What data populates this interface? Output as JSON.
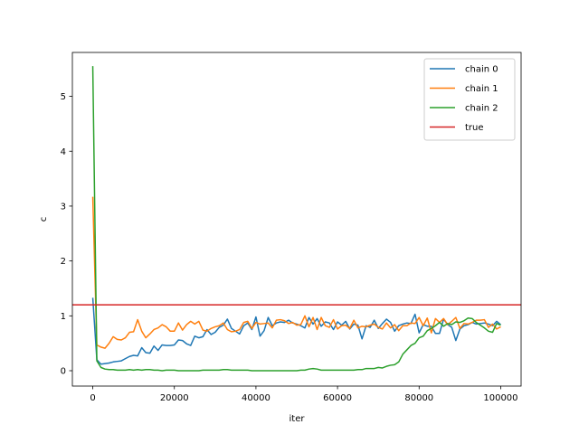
{
  "chart_data": {
    "type": "line",
    "title": "",
    "xlabel": "iter",
    "ylabel": "c",
    "xlim": [
      -5000,
      105000
    ],
    "ylim": [
      -0.28,
      5.8
    ],
    "xticks": [
      0,
      20000,
      40000,
      60000,
      80000,
      100000
    ],
    "xtick_labels": [
      "0",
      "20000",
      "40000",
      "60000",
      "80000",
      "100000"
    ],
    "yticks": [
      0,
      1,
      2,
      3,
      4,
      5
    ],
    "ytick_labels": [
      "0",
      "1",
      "2",
      "3",
      "4",
      "5"
    ],
    "grid": false,
    "legend_position": "top-right",
    "x": [
      0,
      1000,
      2000,
      3000,
      4000,
      5000,
      6000,
      7000,
      8000,
      9000,
      10000,
      11000,
      12000,
      13000,
      14000,
      15000,
      16000,
      17000,
      18000,
      19000,
      20000,
      21000,
      22000,
      23000,
      24000,
      25000,
      26000,
      27000,
      28000,
      29000,
      30000,
      31000,
      32000,
      33000,
      34000,
      35000,
      36000,
      37000,
      38000,
      39000,
      40000,
      41000,
      42000,
      43000,
      44000,
      45000,
      46000,
      47000,
      48000,
      49000,
      50000,
      51000,
      52000,
      53000,
      54000,
      55000,
      56000,
      57000,
      58000,
      59000,
      60000,
      61000,
      62000,
      63000,
      64000,
      65000,
      66000,
      67000,
      68000,
      69000,
      70000,
      71000,
      72000,
      73000,
      74000,
      75000,
      76000,
      77000,
      78000,
      79000,
      80000,
      81000,
      82000,
      83000,
      84000,
      85000,
      86000,
      87000,
      88000,
      89000,
      90000,
      91000,
      92000,
      93000,
      94000,
      95000,
      96000,
      97000,
      98000,
      99000,
      100000
    ],
    "series": [
      {
        "name": "chain 0",
        "color": "#1f77b4",
        "values": [
          1.33,
          0.2,
          0.12,
          0.13,
          0.14,
          0.16,
          0.17,
          0.18,
          0.22,
          0.26,
          0.28,
          0.27,
          0.42,
          0.33,
          0.32,
          0.45,
          0.37,
          0.47,
          0.46,
          0.46,
          0.47,
          0.56,
          0.55,
          0.49,
          0.46,
          0.63,
          0.6,
          0.62,
          0.75,
          0.66,
          0.7,
          0.79,
          0.83,
          0.94,
          0.77,
          0.72,
          0.67,
          0.82,
          0.87,
          0.75,
          0.98,
          0.63,
          0.73,
          0.97,
          0.82,
          0.87,
          0.89,
          0.88,
          0.92,
          0.87,
          0.85,
          0.82,
          0.78,
          0.97,
          0.85,
          0.95,
          0.81,
          0.89,
          0.87,
          0.75,
          0.89,
          0.83,
          0.9,
          0.76,
          0.85,
          0.83,
          0.58,
          0.82,
          0.79,
          0.92,
          0.77,
          0.86,
          0.94,
          0.88,
          0.72,
          0.82,
          0.85,
          0.87,
          0.86,
          1.03,
          0.69,
          0.84,
          0.81,
          0.81,
          0.68,
          0.68,
          0.94,
          0.84,
          0.79,
          0.55,
          0.76,
          0.82,
          0.84,
          0.88,
          0.85,
          0.86,
          0.87,
          0.85,
          0.82,
          0.9,
          0.84
        ]
      },
      {
        "name": "chain 1",
        "color": "#ff7f0e",
        "values": [
          3.17,
          0.47,
          0.43,
          0.41,
          0.5,
          0.62,
          0.57,
          0.56,
          0.6,
          0.7,
          0.71,
          0.93,
          0.72,
          0.6,
          0.67,
          0.75,
          0.78,
          0.84,
          0.8,
          0.72,
          0.72,
          0.87,
          0.74,
          0.84,
          0.9,
          0.85,
          0.9,
          0.74,
          0.72,
          0.77,
          0.8,
          0.82,
          0.87,
          0.75,
          0.71,
          0.72,
          0.75,
          0.88,
          0.9,
          0.77,
          0.88,
          0.85,
          0.86,
          0.87,
          0.78,
          0.92,
          0.93,
          0.91,
          0.86,
          0.88,
          0.83,
          0.84,
          1.0,
          0.8,
          0.97,
          0.75,
          0.97,
          0.82,
          0.79,
          0.93,
          0.76,
          0.82,
          0.83,
          0.77,
          0.92,
          0.78,
          0.81,
          0.8,
          0.83,
          0.85,
          0.79,
          0.76,
          0.87,
          0.78,
          0.84,
          0.73,
          0.82,
          0.82,
          0.87,
          0.86,
          0.97,
          0.82,
          0.96,
          0.69,
          0.95,
          0.88,
          0.95,
          0.84,
          0.9,
          0.97,
          0.77,
          0.86,
          0.85,
          0.88,
          0.92,
          0.92,
          0.93,
          0.79,
          0.85,
          0.76,
          0.8
        ]
      },
      {
        "name": "chain 2",
        "color": "#2ca02c",
        "values": [
          5.55,
          0.18,
          0.06,
          0.03,
          0.02,
          0.02,
          0.01,
          0.01,
          0.01,
          0.02,
          0.01,
          0.02,
          0.01,
          0.02,
          0.02,
          0.01,
          0.01,
          0.0,
          0.01,
          0.01,
          0.01,
          0.0,
          0.0,
          0.0,
          0.0,
          0.0,
          0.0,
          0.01,
          0.01,
          0.01,
          0.01,
          0.01,
          0.02,
          0.02,
          0.01,
          0.01,
          0.01,
          0.01,
          0.01,
          0.0,
          0.0,
          0.0,
          0.0,
          0.0,
          0.0,
          0.0,
          0.0,
          0.0,
          0.0,
          0.0,
          0.0,
          0.01,
          0.01,
          0.03,
          0.04,
          0.03,
          0.01,
          0.01,
          0.01,
          0.01,
          0.01,
          0.01,
          0.01,
          0.01,
          0.01,
          0.02,
          0.02,
          0.04,
          0.04,
          0.04,
          0.06,
          0.05,
          0.08,
          0.1,
          0.11,
          0.16,
          0.3,
          0.38,
          0.46,
          0.5,
          0.6,
          0.63,
          0.73,
          0.77,
          0.82,
          0.88,
          0.81,
          0.86,
          0.84,
          0.89,
          0.88,
          0.91,
          0.96,
          0.95,
          0.88,
          0.83,
          0.78,
          0.72,
          0.7,
          0.86,
          0.83
        ]
      }
    ],
    "hlines": [
      {
        "name": "true",
        "color": "#d62728",
        "y": 1.2
      }
    ]
  }
}
